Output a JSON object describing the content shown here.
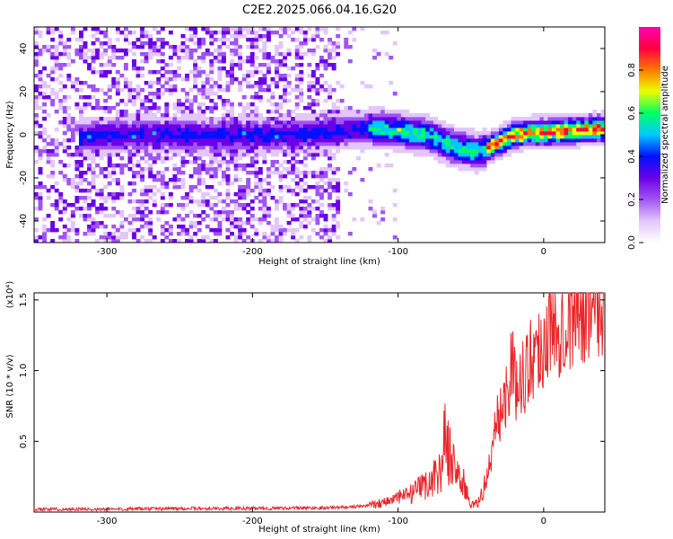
{
  "colors": {
    "snr_line": "#e8272b",
    "spectrogram_base": "#7a1cf0",
    "page_bg": "#ffffff"
  },
  "colormap": [
    "#ffffff",
    "#e3c6fb",
    "#a055f2",
    "#6a00e8",
    "#0010ff",
    "#00c8ff",
    "#00ff66",
    "#eaff00",
    "#ff7a00",
    "#ff0040",
    "#ff00b0"
  ],
  "chart_data": [
    {
      "type": "heatmap",
      "title": "C2E2.2025.066.04.16.G20",
      "xlabel": "Height of straight line (km)",
      "ylabel": "Frequency (Hz)",
      "xlim": [
        -350,
        42
      ],
      "ylim": [
        -50,
        50
      ],
      "xticks": [
        -300,
        -200,
        -100,
        0
      ],
      "yticks": [
        -40,
        -20,
        0,
        20,
        40
      ],
      "colorbar": {
        "label": "Normalized spectral amplitude",
        "range": [
          0.0,
          1.0
        ],
        "ticks": [
          "0.0",
          "0.2",
          "0.4",
          "0.6",
          "0.8"
        ]
      },
      "ridge_frequency_hz": {
        "x": [
          -315,
          -290,
          -260,
          -230,
          -200,
          -170,
          -140,
          -120,
          -100,
          -80,
          -60,
          -45,
          -35,
          -20,
          -10,
          0,
          20,
          42
        ],
        "y": [
          -1,
          0,
          0,
          0,
          0,
          0,
          2,
          3,
          2,
          0,
          -6,
          -8,
          -5,
          0,
          1,
          1,
          2,
          3
        ]
      }
    },
    {
      "type": "line",
      "xlabel": "Height of straight line (km)",
      "ylabel": "SNR (10 * v/v)",
      "yscale_label": "(x10⁴)",
      "xlim": [
        -350,
        42
      ],
      "ylim": [
        0,
        1.55
      ],
      "xticks": [
        -300,
        -200,
        -100,
        0
      ],
      "yticks": [
        0.5,
        1.0,
        1.5
      ],
      "ytick_labels": [
        "0.5",
        "1.0",
        "1.5"
      ],
      "series": [
        {
          "x": [
            -350,
            -300,
            -250,
            -200,
            -150,
            -125,
            -110,
            -100,
            -90,
            -80,
            -70,
            -68,
            -65,
            -60,
            -55,
            -50,
            -45,
            -40,
            -35,
            -32,
            -28,
            -25,
            -22,
            -20,
            -15,
            -10,
            -5,
            0,
            5,
            10,
            15,
            20,
            25,
            30,
            35,
            42
          ],
          "y": [
            0.02,
            0.02,
            0.025,
            0.025,
            0.03,
            0.04,
            0.07,
            0.1,
            0.13,
            0.2,
            0.3,
            0.55,
            0.4,
            0.3,
            0.2,
            0.05,
            0.06,
            0.2,
            0.45,
            0.65,
            0.75,
            0.85,
            1.1,
            0.9,
            0.95,
            1.05,
            1.15,
            1.2,
            1.3,
            1.35,
            1.4,
            1.45,
            1.48,
            1.5,
            1.52,
            1.55
          ]
        }
      ]
    }
  ]
}
